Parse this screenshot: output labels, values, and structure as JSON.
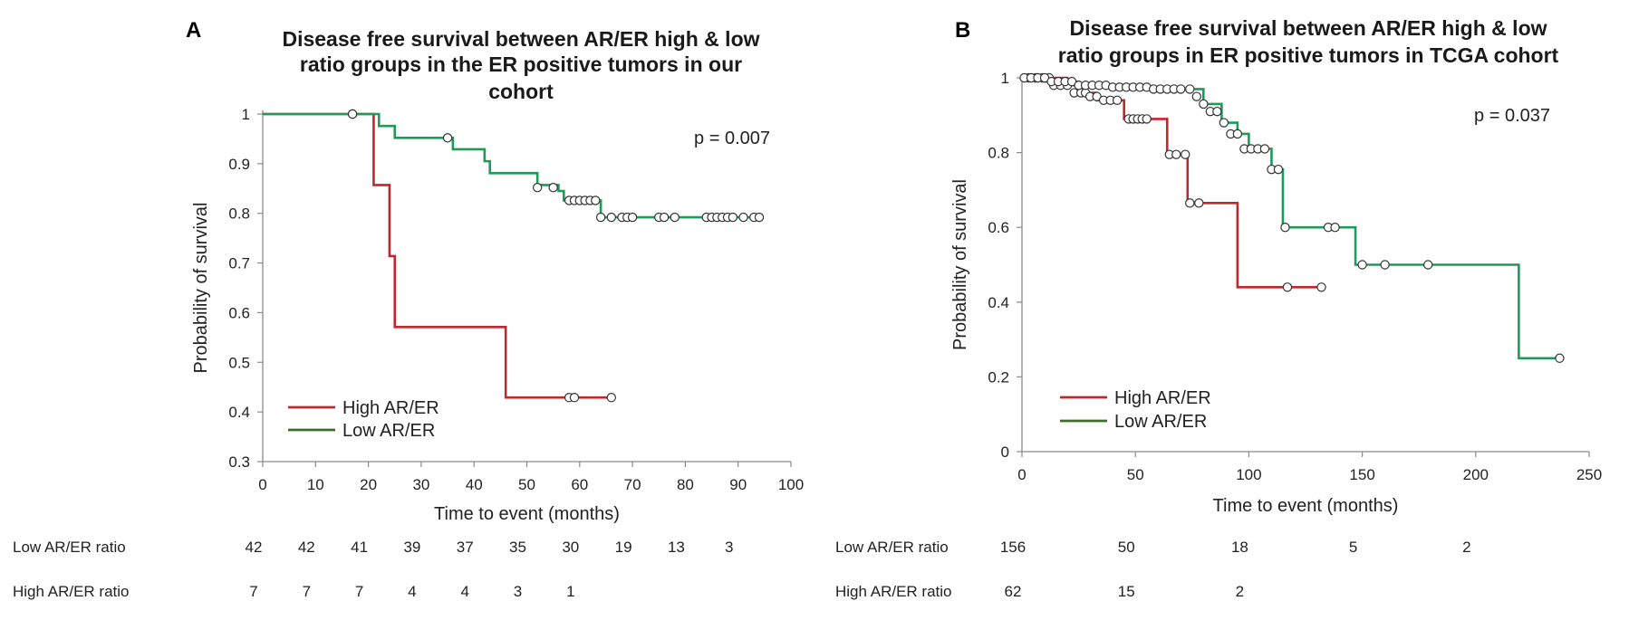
{
  "chart_data": [
    {
      "type": "line",
      "subtype": "kaplan-meier",
      "panel": "A",
      "title_lines": [
        "Disease free survival between AR/ER high & low",
        "ratio groups in the ER positive tumors in our",
        "cohort"
      ],
      "xlabel": "Time to event (months)",
      "ylabel": "Probability of survival",
      "xlim": [
        0,
        100
      ],
      "ylim": [
        0.3,
        1
      ],
      "xticks": [
        0,
        10,
        20,
        30,
        40,
        50,
        60,
        70,
        80,
        90,
        100
      ],
      "yticks": [
        0.3,
        0.4,
        0.5,
        0.6,
        0.7,
        0.8,
        0.9,
        1
      ],
      "ytick_labels": [
        "0.3",
        "0.4",
        "0.5",
        "0.6",
        "0.7",
        "0.8",
        "0.9",
        "1"
      ],
      "p_value": "p = 0.007",
      "legend": [
        "High AR/ER",
        "Low AR/ER"
      ],
      "series": [
        {
          "name": "High AR/ER",
          "color": "#c0282d",
          "steps": [
            [
              0,
              1
            ],
            [
              21,
              0.857
            ],
            [
              24,
              0.714
            ],
            [
              25,
              0.571
            ],
            [
              46,
              0.429
            ],
            [
              66,
              0.429
            ]
          ],
          "censored": [
            [
              17,
              1
            ],
            [
              58,
              0.429
            ],
            [
              59,
              0.429
            ],
            [
              66,
              0.429
            ]
          ]
        },
        {
          "name": "Low AR/ER",
          "color": "#1f9a57",
          "steps": [
            [
              0,
              1
            ],
            [
              22,
              0.976
            ],
            [
              25,
              0.952
            ],
            [
              36,
              0.929
            ],
            [
              42,
              0.905
            ],
            [
              43,
              0.881
            ],
            [
              52,
              0.857
            ],
            [
              56,
              0.845
            ],
            [
              57,
              0.826
            ],
            [
              64,
              0.792
            ],
            [
              94,
              0.792
            ]
          ],
          "censored": [
            [
              17,
              1
            ],
            [
              35,
              0.952
            ],
            [
              52,
              0.852
            ],
            [
              55,
              0.852
            ],
            [
              58,
              0.826
            ],
            [
              59,
              0.826
            ],
            [
              60,
              0.826
            ],
            [
              61,
              0.826
            ],
            [
              62,
              0.826
            ],
            [
              63,
              0.826
            ],
            [
              64,
              0.792
            ],
            [
              66,
              0.792
            ],
            [
              68,
              0.792
            ],
            [
              69,
              0.792
            ],
            [
              70,
              0.792
            ],
            [
              75,
              0.792
            ],
            [
              76,
              0.792
            ],
            [
              78,
              0.792
            ],
            [
              84,
              0.792
            ],
            [
              85,
              0.792
            ],
            [
              86,
              0.792
            ],
            [
              87,
              0.792
            ],
            [
              88,
              0.792
            ],
            [
              89,
              0.792
            ],
            [
              91,
              0.792
            ],
            [
              93,
              0.792
            ],
            [
              94,
              0.792
            ]
          ]
        }
      ],
      "risk_table": [
        {
          "label": "Low AR/ER ratio",
          "values": [
            "42",
            "42",
            "41",
            "39",
            "37",
            "35",
            "30",
            "19",
            "13",
            "3"
          ],
          "times": [
            0,
            10,
            20,
            30,
            40,
            50,
            60,
            70,
            80,
            90
          ]
        },
        {
          "label": "High AR/ER ratio",
          "values": [
            "7",
            "7",
            "7",
            "4",
            "4",
            "3",
            "1"
          ],
          "times": [
            0,
            10,
            20,
            30,
            40,
            50,
            60
          ]
        }
      ]
    },
    {
      "type": "line",
      "subtype": "kaplan-meier",
      "panel": "B",
      "title_lines": [
        "Disease free survival between AR/ER high & low",
        "ratio groups in ER positive tumors in TCGA cohort"
      ],
      "xlabel": "Time to event (months)",
      "ylabel": "Probability of survival",
      "xlim": [
        0,
        250
      ],
      "ylim": [
        0,
        1
      ],
      "xticks": [
        0,
        50,
        100,
        150,
        200,
        250
      ],
      "yticks": [
        0,
        0.2,
        0.4,
        0.6,
        0.8,
        1
      ],
      "ytick_labels": [
        "0",
        "0.2",
        "0.4",
        "0.6",
        "0.8",
        "1"
      ],
      "p_value": "p = 0.037",
      "legend": [
        "High AR/ER",
        "Low AR/ER"
      ],
      "series": [
        {
          "name": "High AR/ER",
          "color": "#c0282d",
          "steps": [
            [
              0,
              1
            ],
            [
              20,
              0.98
            ],
            [
              26,
              0.96
            ],
            [
              33,
              0.94
            ],
            [
              45,
              0.89
            ],
            [
              64,
              0.795
            ],
            [
              73,
              0.665
            ],
            [
              95,
              0.44
            ],
            [
              132,
              0.44
            ]
          ],
          "censored": [
            [
              3,
              1
            ],
            [
              6,
              1
            ],
            [
              9,
              1
            ],
            [
              12,
              1
            ],
            [
              14,
              0.98
            ],
            [
              17,
              0.98
            ],
            [
              20,
              0.98
            ],
            [
              23,
              0.96
            ],
            [
              26,
              0.96
            ],
            [
              28,
              0.96
            ],
            [
              30,
              0.95
            ],
            [
              33,
              0.95
            ],
            [
              36,
              0.94
            ],
            [
              39,
              0.94
            ],
            [
              42,
              0.94
            ],
            [
              47,
              0.89
            ],
            [
              49,
              0.89
            ],
            [
              51,
              0.89
            ],
            [
              53,
              0.89
            ],
            [
              55,
              0.89
            ],
            [
              65,
              0.795
            ],
            [
              68,
              0.795
            ],
            [
              72,
              0.795
            ],
            [
              74,
              0.665
            ],
            [
              78,
              0.665
            ],
            [
              117,
              0.44
            ],
            [
              132,
              0.44
            ]
          ]
        },
        {
          "name": "Low AR/ER",
          "color": "#1f9a57",
          "steps": [
            [
              0,
              1
            ],
            [
              10,
              0.99
            ],
            [
              25,
              0.98
            ],
            [
              40,
              0.975
            ],
            [
              56,
              0.97
            ],
            [
              75,
              0.97
            ],
            [
              80,
              0.93
            ],
            [
              88,
              0.88
            ],
            [
              95,
              0.85
            ],
            [
              100,
              0.81
            ],
            [
              110,
              0.755
            ],
            [
              115,
              0.6
            ],
            [
              147,
              0.5
            ],
            [
              219,
              0.25
            ],
            [
              237,
              0.25
            ]
          ],
          "censored": [
            [
              1,
              1
            ],
            [
              4,
              1
            ],
            [
              7,
              1
            ],
            [
              10,
              1
            ],
            [
              13,
              0.99
            ],
            [
              16,
              0.99
            ],
            [
              19,
              0.99
            ],
            [
              22,
              0.99
            ],
            [
              25,
              0.98
            ],
            [
              28,
              0.98
            ],
            [
              31,
              0.98
            ],
            [
              34,
              0.98
            ],
            [
              37,
              0.98
            ],
            [
              40,
              0.975
            ],
            [
              43,
              0.975
            ],
            [
              46,
              0.975
            ],
            [
              49,
              0.975
            ],
            [
              52,
              0.975
            ],
            [
              55,
              0.975
            ],
            [
              58,
              0.97
            ],
            [
              61,
              0.97
            ],
            [
              64,
              0.97
            ],
            [
              67,
              0.97
            ],
            [
              70,
              0.97
            ],
            [
              74,
              0.97
            ],
            [
              77,
              0.95
            ],
            [
              80,
              0.93
            ],
            [
              83,
              0.91
            ],
            [
              86,
              0.91
            ],
            [
              89,
              0.88
            ],
            [
              92,
              0.85
            ],
            [
              95,
              0.85
            ],
            [
              98,
              0.81
            ],
            [
              101,
              0.81
            ],
            [
              104,
              0.81
            ],
            [
              107,
              0.81
            ],
            [
              110,
              0.755
            ],
            [
              113,
              0.755
            ],
            [
              116,
              0.6
            ],
            [
              135,
              0.6
            ],
            [
              138,
              0.6
            ],
            [
              150,
              0.5
            ],
            [
              160,
              0.5
            ],
            [
              179,
              0.5
            ],
            [
              237,
              0.25
            ]
          ]
        }
      ],
      "risk_table": [
        {
          "label": "Low AR/ER ratio",
          "values": [
            "156",
            "50",
            "18",
            "5",
            "2"
          ],
          "times": [
            0,
            50,
            100,
            150,
            200
          ]
        },
        {
          "label": "High AR/ER ratio",
          "values": [
            "62",
            "15",
            "2"
          ],
          "times": [
            0,
            50,
            100
          ]
        }
      ]
    }
  ]
}
